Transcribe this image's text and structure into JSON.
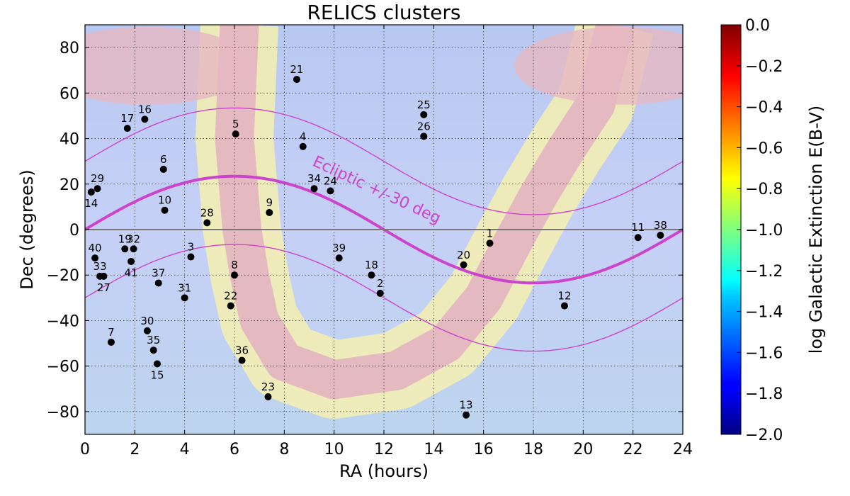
{
  "chart_data": {
    "type": "scatter",
    "title": "RELICS clusters",
    "xlabel": "RA (hours)",
    "ylabel": "Dec (degrees)",
    "xlim": [
      0,
      24
    ],
    "ylim": [
      -90,
      90
    ],
    "xticks": [
      "0",
      "2",
      "4",
      "6",
      "8",
      "10",
      "12",
      "14",
      "16",
      "18",
      "20",
      "22",
      "24"
    ],
    "yticks": [
      "−80",
      "−60",
      "−40",
      "−20",
      "0",
      "20",
      "40",
      "60",
      "80"
    ],
    "grid": true,
    "background": "log Galactic extinction sky map",
    "annotation": "Ecliptic +/-30 deg",
    "colorbar": {
      "label": "log Galactic Extinction E(B-V)",
      "range": [
        -2.0,
        0.0
      ],
      "colormap": "jet",
      "ticks": [
        "−2.0",
        "−1.8",
        "−1.6",
        "−1.4",
        "−1.2",
        "−1.0",
        "−0.8",
        "−0.6",
        "−0.4",
        "−0.2",
        "0.0"
      ]
    },
    "colors": {
      "ecliptic": "#cc44cc",
      "points": "#000000",
      "equator": "#666666"
    },
    "points": [
      {
        "label": "1",
        "ra": 16.25,
        "dec": -6
      },
      {
        "label": "2",
        "ra": 11.85,
        "dec": -28
      },
      {
        "label": "3",
        "ra": 4.25,
        "dec": -12
      },
      {
        "label": "4",
        "ra": 8.75,
        "dec": 36.5
      },
      {
        "label": "5",
        "ra": 6.05,
        "dec": 42
      },
      {
        "label": "6",
        "ra": 3.15,
        "dec": 26.5
      },
      {
        "label": "7",
        "ra": 1.05,
        "dec": -49.5
      },
      {
        "label": "8",
        "ra": 6.0,
        "dec": -20
      },
      {
        "label": "9",
        "ra": 7.4,
        "dec": 7.5
      },
      {
        "label": "10",
        "ra": 3.2,
        "dec": 8.5
      },
      {
        "label": "11",
        "ra": 22.2,
        "dec": -3.5
      },
      {
        "label": "12",
        "ra": 19.25,
        "dec": -33.5
      },
      {
        "label": "13",
        "ra": 15.3,
        "dec": -81.5
      },
      {
        "label": "14",
        "ra": 0.25,
        "dec": 16.5
      },
      {
        "label": "16",
        "ra": 2.4,
        "dec": 48.5
      },
      {
        "label": "17",
        "ra": 1.7,
        "dec": 44.5
      },
      {
        "label": "18",
        "ra": 11.5,
        "dec": -20
      },
      {
        "label": "19",
        "ra": 1.6,
        "dec": -8.5
      },
      {
        "label": "20",
        "ra": 15.2,
        "dec": -15.5
      },
      {
        "label": "21",
        "ra": 8.5,
        "dec": 66
      },
      {
        "label": "22",
        "ra": 5.85,
        "dec": -33.5
      },
      {
        "label": "23",
        "ra": 7.35,
        "dec": -73.5
      },
      {
        "label": "24",
        "ra": 9.85,
        "dec": 17
      },
      {
        "label": "25",
        "ra": 13.6,
        "dec": 50.5
      },
      {
        "label": "26",
        "ra": 13.6,
        "dec": 41
      },
      {
        "label": "27",
        "ra": 0.75,
        "dec": -20.5
      },
      {
        "label": "28",
        "ra": 4.9,
        "dec": 3
      },
      {
        "label": "29",
        "ra": 0.5,
        "dec": 18
      },
      {
        "label": "30",
        "ra": 2.5,
        "dec": -44.5
      },
      {
        "label": "31",
        "ra": 4.0,
        "dec": -30
      },
      {
        "label": "32",
        "ra": 1.95,
        "dec": -8.5
      },
      {
        "label": "33",
        "ra": 0.6,
        "dec": -20.5
      },
      {
        "label": "34",
        "ra": 9.2,
        "dec": 18
      },
      {
        "label": "35",
        "ra": 2.75,
        "dec": -53
      },
      {
        "label": "36",
        "ra": 6.3,
        "dec": -57.5
      },
      {
        "label": "37",
        "ra": 2.95,
        "dec": -23.5
      },
      {
        "label": "38",
        "ra": 23.1,
        "dec": -2.5
      },
      {
        "label": "39",
        "ra": 10.2,
        "dec": -12.5
      },
      {
        "label": "40",
        "ra": 0.4,
        "dec": -12.5
      },
      {
        "label": "41",
        "ra": 1.85,
        "dec": -14
      },
      {
        "label": "15",
        "ra": 2.9,
        "dec": -59
      }
    ]
  }
}
